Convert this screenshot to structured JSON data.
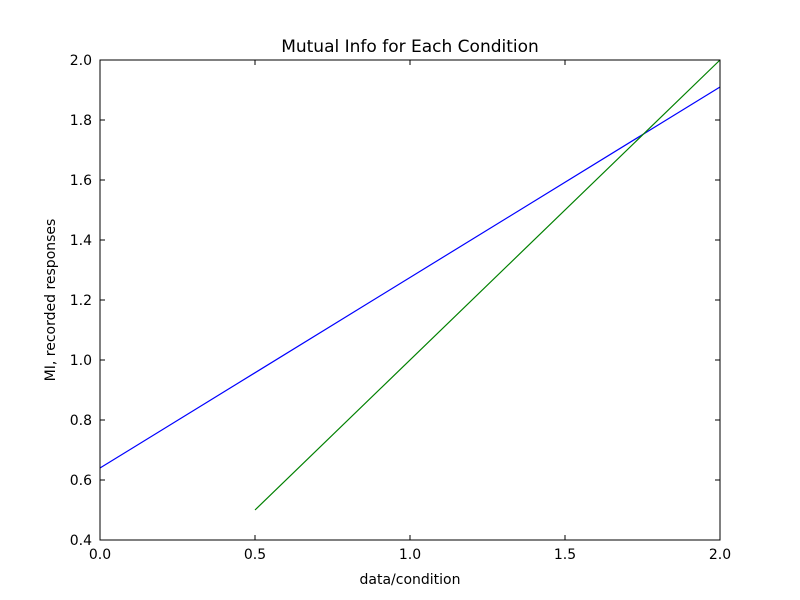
{
  "chart_data": {
    "type": "line",
    "title": "Mutual Info for Each Condition",
    "xlabel": "data/condition",
    "ylabel": "MI, recorded responses",
    "xlim": [
      0.0,
      2.0
    ],
    "ylim": [
      0.4,
      2.0
    ],
    "xticks": [
      0.0,
      0.5,
      1.0,
      1.5,
      2.0
    ],
    "xtick_labels": [
      "0.0",
      "0.5",
      "1.0",
      "1.5",
      "2.0"
    ],
    "yticks": [
      0.4,
      0.6,
      0.8,
      1.0,
      1.2,
      1.4,
      1.6,
      1.8,
      2.0
    ],
    "ytick_labels": [
      "0.4",
      "0.6",
      "0.8",
      "1.0",
      "1.2",
      "1.4",
      "1.6",
      "1.8",
      "2.0"
    ],
    "grid": false,
    "series": [
      {
        "color": "#0000ff",
        "x": [
          0.0,
          2.0
        ],
        "y": [
          0.64,
          1.91
        ]
      },
      {
        "color": "#008000",
        "x": [
          0.5,
          2.0
        ],
        "y": [
          0.5,
          2.0
        ]
      }
    ]
  }
}
